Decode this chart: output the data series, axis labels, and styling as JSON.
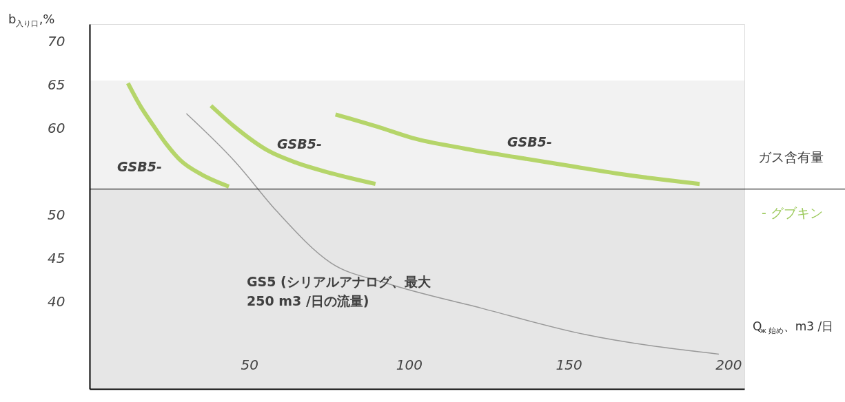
{
  "chart_data": {
    "type": "line",
    "ylabel": "b$_{入り口}$,%",
    "xlabel": "Q$_{ж 始め}$、m3 /日",
    "xlim": [
      0,
      205
    ],
    "ylim": [
      30,
      72
    ],
    "xticks": [
      50,
      100,
      150,
      200
    ],
    "yticks": [
      40,
      45,
      50,
      60,
      65,
      70
    ],
    "grid": false,
    "marker": "none",
    "line_style": "solid",
    "series": [
      {
        "color": "#b5d56a",
        "x": [
          12,
          16,
          20,
          24,
          28.5,
          35,
          43.6
        ],
        "values": [
          65.2,
          62.5,
          60.3,
          58.2,
          56.3,
          54.7,
          53.3
        ]
      },
      {
        "color": "#b5d56a",
        "x": [
          38,
          45,
          56,
          65,
          75,
          89.5
        ],
        "values": [
          62.6,
          60.3,
          57.4,
          56,
          54.9,
          53.6
        ]
      },
      {
        "color": "#b5d56a",
        "x": [
          77,
          90,
          101,
          117,
          133,
          150,
          165,
          191
        ],
        "values": [
          61.6,
          60.2,
          58.9,
          57.7,
          56.7,
          55.7,
          54.8,
          53.6
        ]
      },
      {
        "color": "#999999",
        "x": [
          30.3,
          45.7,
          58.5,
          75.6,
          92.7,
          122.6,
          154.7,
          197
        ],
        "values": [
          61.7,
          56.1,
          50.5,
          44.5,
          42.2,
          39.3,
          36.3,
          34
        ]
      }
    ],
    "bands": [
      {
        "axis": "y",
        "from": 53,
        "to": 65.5,
        "color": "#f2f2f2"
      },
      {
        "axis": "y",
        "from": 30,
        "to": 53,
        "color": "#e6e6e6"
      }
    ],
    "ref_lines": [
      {
        "axis": "y",
        "value": 53,
        "color": "#000000",
        "line_style": "solid"
      }
    ],
    "annotations": [
      "GSB5-",
      "GSB5-",
      "GSB5-",
      "GS5 (シリアルアナログ、最大\n250 m3 /日の流量)",
      "ガス含有量",
      "- グブキン"
    ]
  }
}
